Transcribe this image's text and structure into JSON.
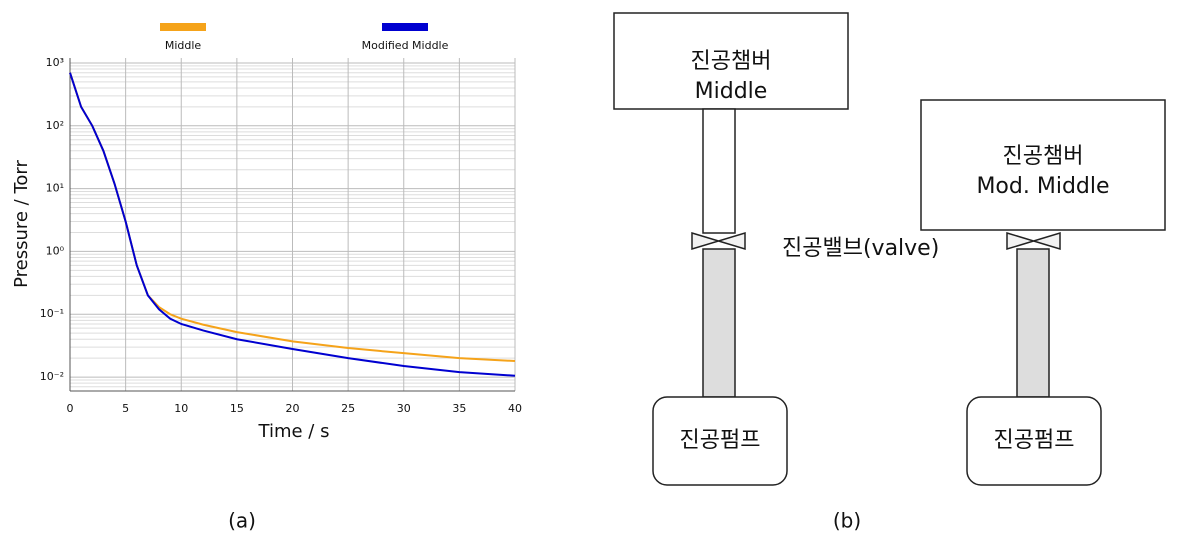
{
  "chart_data": {
    "type": "line",
    "x_label": "Time / s",
    "y_label": "Pressure / Torr",
    "x": [
      0,
      1,
      2,
      3,
      4,
      5,
      6,
      7,
      8,
      9,
      10,
      12,
      15,
      20,
      25,
      30,
      35,
      40
    ],
    "series": [
      {
        "name": "Middle",
        "color": "#f5a31a",
        "values": [
          700,
          200,
          100,
          40,
          12,
          3,
          0.6,
          0.2,
          0.13,
          0.1,
          0.085,
          0.068,
          0.052,
          0.037,
          0.029,
          0.024,
          0.02,
          0.018
        ]
      },
      {
        "name": "Modified Middle",
        "color": "#0000d0",
        "values": [
          700,
          200,
          100,
          40,
          12,
          3,
          0.6,
          0.2,
          0.12,
          0.085,
          0.07,
          0.055,
          0.04,
          0.028,
          0.02,
          0.015,
          0.012,
          0.0105
        ]
      }
    ],
    "xlim": [
      0,
      40
    ],
    "xticks": [
      0,
      5,
      10,
      15,
      20,
      25,
      30,
      35,
      40
    ],
    "ylim": [
      0.006,
      1200
    ],
    "log_y": true,
    "grid": true,
    "yticks": [
      {
        "value": 0.01,
        "label": "10⁻²"
      },
      {
        "value": 0.1,
        "label": "10⁻¹"
      },
      {
        "value": 1,
        "label": "10⁰"
      },
      {
        "value": 10,
        "label": "10¹"
      },
      {
        "value": 100,
        "label": "10²"
      },
      {
        "value": 1000,
        "label": "10³"
      }
    ],
    "legend": "top"
  },
  "diagram": {
    "chambers": [
      {
        "title": "진공챔버",
        "label": "Middle"
      },
      {
        "title": "진공챔버",
        "label": "Mod. Middle"
      }
    ],
    "valve_label": "진공밸브(valve)",
    "pumps": [
      "진공펌프",
      "진공펌프"
    ]
  },
  "captions": [
    "(a)",
    "(b)"
  ]
}
